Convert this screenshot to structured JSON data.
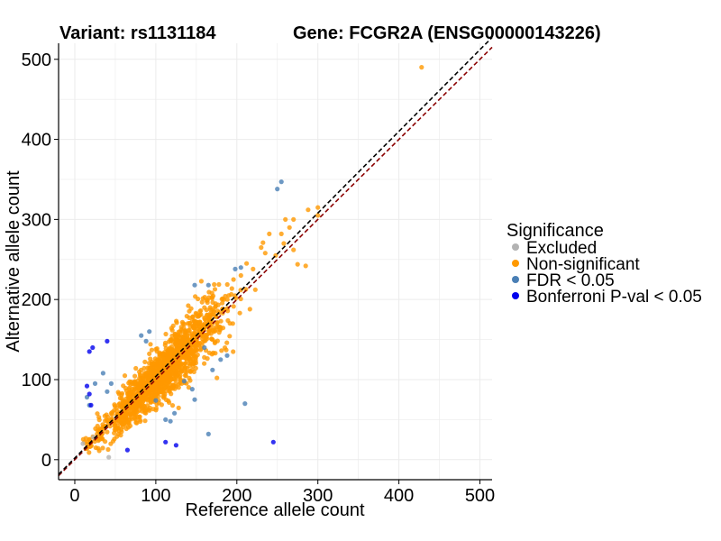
{
  "chart_data": {
    "type": "scatter",
    "title_left": "Variant: rs1131184",
    "title_right": "Gene: FCGR2A (ENSG00000143226)",
    "xlabel": "Reference allele count",
    "ylabel": "Alternative allele count",
    "xlim": [
      -20,
      515
    ],
    "ylim": [
      -25,
      520
    ],
    "xticks": [
      0,
      100,
      200,
      300,
      400,
      500
    ],
    "yticks": [
      0,
      100,
      200,
      300,
      400,
      500
    ],
    "grid": true,
    "reference_lines": [
      {
        "kind": "identity",
        "color": "#8b0000",
        "style": "dashed"
      },
      {
        "kind": "fit",
        "color": "#000000",
        "style": "dashed"
      }
    ],
    "legend": {
      "title": "Significance",
      "placement": "right",
      "entries": [
        {
          "label": "Excluded",
          "color": "#b3b3b3"
        },
        {
          "label": "Non-significant",
          "color": "#ff9900"
        },
        {
          "label": "FDR < 0.05",
          "color": "#4a7fb5"
        },
        {
          "label": "Bonferroni P-val < 0.05",
          "color": "#0000ee"
        }
      ]
    },
    "series": [
      {
        "name": "Excluded",
        "color": "#b3b3b3",
        "points": [
          [
            42,
            3
          ],
          [
            10,
            20
          ],
          [
            23,
            28
          ]
        ]
      },
      {
        "name": "Non-significant",
        "color": "#ff9900",
        "cloud": {
          "count": 1500,
          "x_center": 110,
          "x_sd": 38,
          "x_min": 10,
          "x_max": 300,
          "slope": 1.0,
          "noise_sd": 16
        },
        "points": [
          [
            428,
            490
          ],
          [
            300,
            315
          ],
          [
            288,
            312
          ],
          [
            270,
            262
          ],
          [
            258,
            270
          ],
          [
            248,
            255
          ],
          [
            260,
            300
          ],
          [
            275,
            244
          ],
          [
            285,
            242
          ],
          [
            230,
            265
          ],
          [
            240,
            282
          ],
          [
            220,
            238
          ],
          [
            212,
            245
          ],
          [
            205,
            230
          ],
          [
            195,
            170
          ],
          [
            180,
            165
          ],
          [
            170,
            150
          ],
          [
            190,
            205
          ],
          [
            160,
            190
          ],
          [
            300,
            305
          ],
          [
            270,
            300
          ],
          [
            255,
            282
          ],
          [
            235,
            258
          ],
          [
            265,
            290
          ],
          [
            110,
            132
          ],
          [
            130,
            160
          ],
          [
            150,
            172
          ],
          [
            175,
            178
          ],
          [
            142,
            126
          ],
          [
            95,
            108
          ],
          [
            80,
            88
          ],
          [
            60,
            72
          ],
          [
            55,
            48
          ],
          [
            45,
            58
          ],
          [
            35,
            38
          ],
          [
            28,
            42
          ],
          [
            20,
            22
          ],
          [
            18,
            25
          ],
          [
            15,
            14
          ],
          [
            12,
            22
          ]
        ]
      },
      {
        "name": "FDR < 0.05",
        "color": "#4a7fb5",
        "points": [
          [
            255,
            347
          ],
          [
            250,
            338
          ],
          [
            205,
            240
          ],
          [
            198,
            238
          ],
          [
            165,
            218
          ],
          [
            148,
            218
          ],
          [
            92,
            160
          ],
          [
            88,
            148
          ],
          [
            35,
            108
          ],
          [
            25,
            95
          ],
          [
            15,
            78
          ],
          [
            18,
            68
          ],
          [
            40,
            85
          ],
          [
            45,
            95
          ],
          [
            180,
            125
          ],
          [
            188,
            130
          ],
          [
            170,
            112
          ],
          [
            145,
            88
          ],
          [
            135,
            98
          ],
          [
            123,
            58
          ],
          [
            118,
            48
          ],
          [
            112,
            50
          ],
          [
            148,
            75
          ],
          [
            210,
            70
          ],
          [
            165,
            32
          ],
          [
            100,
            74
          ],
          [
            82,
            155
          ],
          [
            160,
            140
          ]
        ]
      },
      {
        "name": "Bonferroni P-val < 0.05",
        "color": "#0000ee",
        "points": [
          [
            18,
            135
          ],
          [
            22,
            140
          ],
          [
            40,
            148
          ],
          [
            15,
            92
          ],
          [
            18,
            82
          ],
          [
            20,
            68
          ],
          [
            65,
            12
          ],
          [
            112,
            22
          ],
          [
            125,
            18
          ],
          [
            245,
            22
          ]
        ]
      }
    ]
  }
}
